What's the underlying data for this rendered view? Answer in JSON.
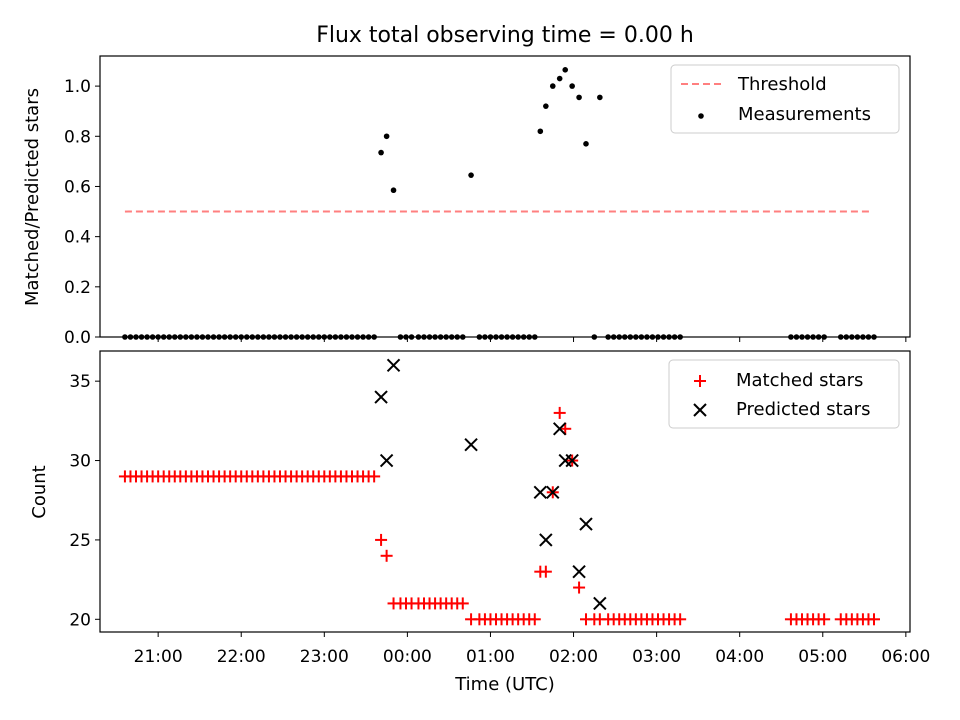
{
  "chart_data": [
    {
      "type": "scatter",
      "title": "Flux total observing time = 0.00 h",
      "xlabel": "",
      "ylabel": "Matched/Predicted stars",
      "xlim": [
        "20:18",
        "06:03"
      ],
      "ylim": [
        0,
        1.12
      ],
      "yticks": [
        "0.0",
        "0.2",
        "0.4",
        "0.6",
        "0.8",
        "1.0"
      ],
      "legend_position": "top-right",
      "threshold": {
        "name": "Threshold",
        "value": 0.5,
        "x_start": "20:36",
        "x_end": "05:36",
        "color": "#ff7f7f",
        "style": "dashed"
      },
      "series": [
        {
          "name": "Measurements",
          "marker": "dot",
          "color": "#000000",
          "points": [
            [
              "20:36",
              0
            ],
            [
              "20:40",
              0
            ],
            [
              "20:44",
              0
            ],
            [
              "20:48",
              0
            ],
            [
              "20:52",
              0
            ],
            [
              "20:56",
              0
            ],
            [
              "21:00",
              0
            ],
            [
              "21:04",
              0
            ],
            [
              "21:08",
              0
            ],
            [
              "21:12",
              0
            ],
            [
              "21:16",
              0
            ],
            [
              "21:20",
              0
            ],
            [
              "21:24",
              0
            ],
            [
              "21:28",
              0
            ],
            [
              "21:32",
              0
            ],
            [
              "21:36",
              0
            ],
            [
              "21:40",
              0
            ],
            [
              "21:44",
              0
            ],
            [
              "21:48",
              0
            ],
            [
              "21:52",
              0
            ],
            [
              "21:56",
              0
            ],
            [
              "22:00",
              0
            ],
            [
              "22:04",
              0
            ],
            [
              "22:08",
              0
            ],
            [
              "22:12",
              0
            ],
            [
              "22:16",
              0
            ],
            [
              "22:20",
              0
            ],
            [
              "22:24",
              0
            ],
            [
              "22:28",
              0
            ],
            [
              "22:32",
              0
            ],
            [
              "22:36",
              0
            ],
            [
              "22:40",
              0
            ],
            [
              "22:44",
              0
            ],
            [
              "22:48",
              0
            ],
            [
              "22:52",
              0
            ],
            [
              "22:56",
              0
            ],
            [
              "23:00",
              0
            ],
            [
              "23:04",
              0
            ],
            [
              "23:08",
              0
            ],
            [
              "23:12",
              0
            ],
            [
              "23:16",
              0
            ],
            [
              "23:20",
              0
            ],
            [
              "23:24",
              0
            ],
            [
              "23:28",
              0
            ],
            [
              "23:32",
              0
            ],
            [
              "23:36",
              0
            ],
            [
              "23:41",
              0.735
            ],
            [
              "23:45",
              0.8
            ],
            [
              "23:50",
              0.585
            ],
            [
              "23:55",
              0
            ],
            [
              "23:59",
              0
            ],
            [
              "00:03",
              0
            ],
            [
              "00:08",
              0
            ],
            [
              "00:12",
              0
            ],
            [
              "00:16",
              0
            ],
            [
              "00:20",
              0
            ],
            [
              "00:24",
              0
            ],
            [
              "00:28",
              0
            ],
            [
              "00:32",
              0
            ],
            [
              "00:36",
              0
            ],
            [
              "00:40",
              0
            ],
            [
              "00:46",
              0.645
            ],
            [
              "00:52",
              0
            ],
            [
              "00:56",
              0
            ],
            [
              "01:00",
              0
            ],
            [
              "01:04",
              0
            ],
            [
              "01:08",
              0
            ],
            [
              "01:12",
              0
            ],
            [
              "01:16",
              0
            ],
            [
              "01:20",
              0
            ],
            [
              "01:24",
              0
            ],
            [
              "01:28",
              0
            ],
            [
              "01:32",
              0
            ],
            [
              "01:36",
              0.82
            ],
            [
              "01:40",
              0.92
            ],
            [
              "01:45",
              1.0
            ],
            [
              "01:50",
              1.03
            ],
            [
              "01:54",
              1.065
            ],
            [
              "01:59",
              1.0
            ],
            [
              "02:04",
              0.955
            ],
            [
              "02:09",
              0.77
            ],
            [
              "02:15",
              0
            ],
            [
              "02:19",
              0.955
            ],
            [
              "02:25",
              0
            ],
            [
              "02:29",
              0
            ],
            [
              "02:33",
              0
            ],
            [
              "02:37",
              0
            ],
            [
              "02:41",
              0
            ],
            [
              "02:45",
              0
            ],
            [
              "02:49",
              0
            ],
            [
              "02:53",
              0
            ],
            [
              "02:57",
              0
            ],
            [
              "03:01",
              0
            ],
            [
              "03:05",
              0
            ],
            [
              "03:09",
              0
            ],
            [
              "03:13",
              0
            ],
            [
              "03:17",
              0
            ],
            [
              "04:37",
              0
            ],
            [
              "04:41",
              0
            ],
            [
              "04:45",
              0
            ],
            [
              "04:49",
              0
            ],
            [
              "04:53",
              0
            ],
            [
              "04:57",
              0
            ],
            [
              "05:01",
              0
            ],
            [
              "05:13",
              0
            ],
            [
              "05:17",
              0
            ],
            [
              "05:21",
              0
            ],
            [
              "05:25",
              0
            ],
            [
              "05:29",
              0
            ],
            [
              "05:33",
              0
            ],
            [
              "05:37",
              0
            ]
          ]
        }
      ]
    },
    {
      "type": "scatter",
      "title": "",
      "xlabel": "Time (UTC)",
      "ylabel": "Count",
      "xlim": [
        "20:18",
        "06:03"
      ],
      "ylim": [
        19.2,
        36.9
      ],
      "yticks": [
        "20",
        "25",
        "30",
        "35"
      ],
      "xticks": [
        "21:00",
        "22:00",
        "23:00",
        "00:00",
        "01:00",
        "02:00",
        "03:00",
        "04:00",
        "05:00",
        "06:00"
      ],
      "legend_position": "top-right",
      "series": [
        {
          "name": "Matched stars",
          "marker": "plus",
          "color": "#ff0000",
          "points": [
            [
              "20:36",
              29
            ],
            [
              "20:40",
              29
            ],
            [
              "20:44",
              29
            ],
            [
              "20:48",
              29
            ],
            [
              "20:52",
              29
            ],
            [
              "20:56",
              29
            ],
            [
              "21:00",
              29
            ],
            [
              "21:04",
              29
            ],
            [
              "21:08",
              29
            ],
            [
              "21:12",
              29
            ],
            [
              "21:16",
              29
            ],
            [
              "21:20",
              29
            ],
            [
              "21:24",
              29
            ],
            [
              "21:28",
              29
            ],
            [
              "21:32",
              29
            ],
            [
              "21:36",
              29
            ],
            [
              "21:40",
              29
            ],
            [
              "21:44",
              29
            ],
            [
              "21:48",
              29
            ],
            [
              "21:52",
              29
            ],
            [
              "21:56",
              29
            ],
            [
              "22:00",
              29
            ],
            [
              "22:04",
              29
            ],
            [
              "22:08",
              29
            ],
            [
              "22:12",
              29
            ],
            [
              "22:16",
              29
            ],
            [
              "22:20",
              29
            ],
            [
              "22:24",
              29
            ],
            [
              "22:28",
              29
            ],
            [
              "22:32",
              29
            ],
            [
              "22:36",
              29
            ],
            [
              "22:40",
              29
            ],
            [
              "22:44",
              29
            ],
            [
              "22:48",
              29
            ],
            [
              "22:52",
              29
            ],
            [
              "22:56",
              29
            ],
            [
              "23:00",
              29
            ],
            [
              "23:04",
              29
            ],
            [
              "23:08",
              29
            ],
            [
              "23:12",
              29
            ],
            [
              "23:16",
              29
            ],
            [
              "23:20",
              29
            ],
            [
              "23:24",
              29
            ],
            [
              "23:28",
              29
            ],
            [
              "23:32",
              29
            ],
            [
              "23:36",
              29
            ],
            [
              "23:41",
              25
            ],
            [
              "23:45",
              24
            ],
            [
              "23:50",
              21
            ],
            [
              "23:55",
              21
            ],
            [
              "23:59",
              21
            ],
            [
              "00:03",
              21
            ],
            [
              "00:08",
              21
            ],
            [
              "00:12",
              21
            ],
            [
              "00:16",
              21
            ],
            [
              "00:20",
              21
            ],
            [
              "00:24",
              21
            ],
            [
              "00:28",
              21
            ],
            [
              "00:32",
              21
            ],
            [
              "00:36",
              21
            ],
            [
              "00:40",
              21
            ],
            [
              "00:46",
              20
            ],
            [
              "00:52",
              20
            ],
            [
              "00:56",
              20
            ],
            [
              "01:00",
              20
            ],
            [
              "01:04",
              20
            ],
            [
              "01:08",
              20
            ],
            [
              "01:12",
              20
            ],
            [
              "01:16",
              20
            ],
            [
              "01:20",
              20
            ],
            [
              "01:24",
              20
            ],
            [
              "01:28",
              20
            ],
            [
              "01:32",
              20
            ],
            [
              "01:36",
              23
            ],
            [
              "01:40",
              23
            ],
            [
              "01:45",
              28
            ],
            [
              "01:50",
              33
            ],
            [
              "01:54",
              32
            ],
            [
              "01:59",
              30
            ],
            [
              "02:04",
              22
            ],
            [
              "02:09",
              20
            ],
            [
              "02:15",
              20
            ],
            [
              "02:19",
              20
            ],
            [
              "02:25",
              20
            ],
            [
              "02:29",
              20
            ],
            [
              "02:33",
              20
            ],
            [
              "02:37",
              20
            ],
            [
              "02:41",
              20
            ],
            [
              "02:45",
              20
            ],
            [
              "02:49",
              20
            ],
            [
              "02:53",
              20
            ],
            [
              "02:57",
              20
            ],
            [
              "03:01",
              20
            ],
            [
              "03:05",
              20
            ],
            [
              "03:09",
              20
            ],
            [
              "03:13",
              20
            ],
            [
              "03:17",
              20
            ],
            [
              "04:37",
              20
            ],
            [
              "04:41",
              20
            ],
            [
              "04:45",
              20
            ],
            [
              "04:49",
              20
            ],
            [
              "04:53",
              20
            ],
            [
              "04:57",
              20
            ],
            [
              "05:01",
              20
            ],
            [
              "05:13",
              20
            ],
            [
              "05:17",
              20
            ],
            [
              "05:21",
              20
            ],
            [
              "05:25",
              20
            ],
            [
              "05:29",
              20
            ],
            [
              "05:33",
              20
            ],
            [
              "05:37",
              20
            ]
          ]
        },
        {
          "name": "Predicted stars",
          "marker": "x",
          "color": "#000000",
          "points": [
            [
              "23:41",
              34
            ],
            [
              "23:45",
              30
            ],
            [
              "23:50",
              36
            ],
            [
              "00:46",
              31
            ],
            [
              "01:36",
              28
            ],
            [
              "01:40",
              25
            ],
            [
              "01:45",
              28
            ],
            [
              "01:50",
              32
            ],
            [
              "01:54",
              30
            ],
            [
              "01:59",
              30
            ],
            [
              "02:04",
              23
            ],
            [
              "02:09",
              26
            ],
            [
              "02:19",
              21
            ]
          ]
        }
      ]
    }
  ]
}
